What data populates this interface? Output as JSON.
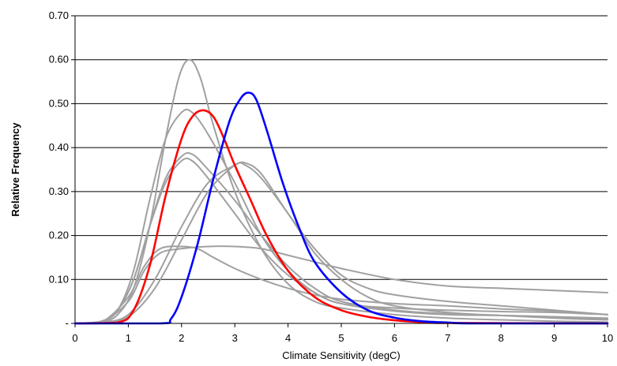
{
  "chart_data": {
    "type": "line",
    "title": "",
    "xlabel": "Climate Sensitivity (degC)",
    "ylabel": "Relative Frequency",
    "xlim": [
      0,
      10
    ],
    "ylim": [
      0,
      0.7
    ],
    "x_ticks": [
      "0",
      "1",
      "2",
      "3",
      "4",
      "5",
      "6",
      "7",
      "8",
      "9",
      "10"
    ],
    "y_ticks": [
      "-",
      "0.10",
      "0.20",
      "0.30",
      "0.40",
      "0.50",
      "0.60",
      "0.70"
    ],
    "grid": "horizontal",
    "legend": "none",
    "series": [
      {
        "color": "#a0a0a0",
        "points": [
          [
            0,
            0
          ],
          [
            0.5,
            0.003
          ],
          [
            0.8,
            0.02
          ],
          [
            1.1,
            0.08
          ],
          [
            1.4,
            0.22
          ],
          [
            1.7,
            0.42
          ],
          [
            1.95,
            0.56
          ],
          [
            2.15,
            0.6
          ],
          [
            2.35,
            0.56
          ],
          [
            2.6,
            0.45
          ],
          [
            3.0,
            0.3
          ],
          [
            3.5,
            0.17
          ],
          [
            4.0,
            0.09
          ],
          [
            4.5,
            0.05
          ],
          [
            5.0,
            0.035
          ],
          [
            6.0,
            0.02
          ],
          [
            7.0,
            0.012
          ],
          [
            8.0,
            0.008
          ],
          [
            9.0,
            0.005
          ],
          [
            10.0,
            0.003
          ]
        ]
      },
      {
        "color": "#a0a0a0",
        "points": [
          [
            0,
            0
          ],
          [
            0.5,
            0.005
          ],
          [
            0.8,
            0.03
          ],
          [
            1.1,
            0.12
          ],
          [
            1.4,
            0.28
          ],
          [
            1.7,
            0.42
          ],
          [
            2.0,
            0.48
          ],
          [
            2.2,
            0.48
          ],
          [
            2.5,
            0.43
          ],
          [
            3.0,
            0.32
          ],
          [
            3.5,
            0.2
          ],
          [
            4.0,
            0.12
          ],
          [
            4.5,
            0.07
          ],
          [
            5.0,
            0.045
          ],
          [
            6.0,
            0.028
          ],
          [
            7.0,
            0.02
          ],
          [
            8.0,
            0.018
          ],
          [
            9.0,
            0.015
          ],
          [
            10.0,
            0.01
          ]
        ]
      },
      {
        "color": "#a0a0a0",
        "points": [
          [
            0,
            0
          ],
          [
            0.5,
            0.005
          ],
          [
            0.8,
            0.03
          ],
          [
            1.1,
            0.1
          ],
          [
            1.4,
            0.22
          ],
          [
            1.7,
            0.33
          ],
          [
            2.0,
            0.38
          ],
          [
            2.2,
            0.385
          ],
          [
            2.5,
            0.35
          ],
          [
            3.0,
            0.28
          ],
          [
            3.5,
            0.2
          ],
          [
            4.0,
            0.13
          ],
          [
            4.5,
            0.08
          ],
          [
            5.0,
            0.05
          ],
          [
            6.0,
            0.03
          ],
          [
            7.0,
            0.022
          ],
          [
            8.0,
            0.018
          ],
          [
            9.0,
            0.015
          ],
          [
            10.0,
            0.012
          ]
        ]
      },
      {
        "color": "#a0a0a0",
        "points": [
          [
            0,
            0
          ],
          [
            0.5,
            0.005
          ],
          [
            0.8,
            0.03
          ],
          [
            1.1,
            0.1
          ],
          [
            1.4,
            0.22
          ],
          [
            1.7,
            0.32
          ],
          [
            2.0,
            0.37
          ],
          [
            2.2,
            0.37
          ],
          [
            2.5,
            0.33
          ],
          [
            3.0,
            0.25
          ],
          [
            3.5,
            0.17
          ],
          [
            4.0,
            0.11
          ],
          [
            4.5,
            0.07
          ],
          [
            5.0,
            0.045
          ],
          [
            6.0,
            0.035
          ],
          [
            7.0,
            0.03
          ],
          [
            8.0,
            0.027
          ],
          [
            9.0,
            0.025
          ],
          [
            10.0,
            0.02
          ]
        ]
      },
      {
        "color": "#a0a0a0",
        "points": [
          [
            0,
            0
          ],
          [
            0.5,
            0.002
          ],
          [
            1.0,
            0.02
          ],
          [
            1.5,
            0.1
          ],
          [
            2.0,
            0.22
          ],
          [
            2.5,
            0.32
          ],
          [
            3.0,
            0.36
          ],
          [
            3.2,
            0.365
          ],
          [
            3.5,
            0.34
          ],
          [
            4.0,
            0.25
          ],
          [
            4.5,
            0.17
          ],
          [
            5.0,
            0.11
          ],
          [
            5.5,
            0.08
          ],
          [
            6.0,
            0.065
          ],
          [
            7.0,
            0.05
          ],
          [
            8.0,
            0.04
          ],
          [
            9.0,
            0.03
          ],
          [
            10.0,
            0.02
          ]
        ]
      },
      {
        "color": "#a0a0a0",
        "points": [
          [
            0,
            0
          ],
          [
            0.5,
            0.002
          ],
          [
            1.0,
            0.015
          ],
          [
            1.5,
            0.08
          ],
          [
            2.0,
            0.19
          ],
          [
            2.5,
            0.3
          ],
          [
            3.0,
            0.36
          ],
          [
            3.2,
            0.36
          ],
          [
            3.5,
            0.33
          ],
          [
            4.0,
            0.25
          ],
          [
            4.5,
            0.16
          ],
          [
            5.0,
            0.1
          ],
          [
            5.5,
            0.06
          ],
          [
            6.0,
            0.04
          ],
          [
            7.0,
            0.025
          ],
          [
            8.0,
            0.018
          ],
          [
            9.0,
            0.012
          ],
          [
            10.0,
            0.008
          ]
        ]
      },
      {
        "color": "#a0a0a0",
        "points": [
          [
            0,
            0
          ],
          [
            0.5,
            0.003
          ],
          [
            1.0,
            0.05
          ],
          [
            1.3,
            0.12
          ],
          [
            1.6,
            0.16
          ],
          [
            2.0,
            0.17
          ],
          [
            2.5,
            0.175
          ],
          [
            3.0,
            0.175
          ],
          [
            3.5,
            0.17
          ],
          [
            4.0,
            0.155
          ],
          [
            4.5,
            0.14
          ],
          [
            5.0,
            0.125
          ],
          [
            6.0,
            0.1
          ],
          [
            7.0,
            0.085
          ],
          [
            8.0,
            0.08
          ],
          [
            9.0,
            0.075
          ],
          [
            10.0,
            0.07
          ]
        ]
      },
      {
        "color": "#a0a0a0",
        "points": [
          [
            0,
            0
          ],
          [
            0.5,
            0.003
          ],
          [
            1.0,
            0.06
          ],
          [
            1.3,
            0.13
          ],
          [
            1.6,
            0.17
          ],
          [
            2.0,
            0.175
          ],
          [
            2.3,
            0.17
          ],
          [
            2.6,
            0.15
          ],
          [
            3.0,
            0.125
          ],
          [
            3.5,
            0.1
          ],
          [
            4.0,
            0.08
          ],
          [
            4.5,
            0.065
          ],
          [
            5.0,
            0.055
          ],
          [
            6.0,
            0.045
          ],
          [
            7.0,
            0.04
          ],
          [
            8.0,
            0.033
          ],
          [
            9.0,
            0.028
          ],
          [
            10.0,
            0.02
          ]
        ]
      },
      {
        "color": "#ff0000",
        "points": [
          [
            0,
            0
          ],
          [
            0.8,
            0.002
          ],
          [
            1.1,
            0.03
          ],
          [
            1.4,
            0.13
          ],
          [
            1.7,
            0.29
          ],
          [
            2.0,
            0.42
          ],
          [
            2.2,
            0.47
          ],
          [
            2.4,
            0.485
          ],
          [
            2.6,
            0.47
          ],
          [
            2.8,
            0.42
          ],
          [
            3.0,
            0.36
          ],
          [
            3.3,
            0.28
          ],
          [
            3.6,
            0.2
          ],
          [
            4.0,
            0.12
          ],
          [
            4.5,
            0.06
          ],
          [
            5.0,
            0.03
          ],
          [
            5.5,
            0.015
          ],
          [
            6.0,
            0.007
          ],
          [
            6.5,
            0.003
          ],
          [
            7.0,
            0.001
          ],
          [
            10.0,
            0
          ]
        ]
      },
      {
        "color": "#0000ff",
        "points": [
          [
            0,
            0
          ],
          [
            1.6,
            0
          ],
          [
            1.8,
            0.01
          ],
          [
            2.0,
            0.06
          ],
          [
            2.3,
            0.18
          ],
          [
            2.6,
            0.33
          ],
          [
            2.9,
            0.46
          ],
          [
            3.1,
            0.51
          ],
          [
            3.25,
            0.525
          ],
          [
            3.4,
            0.51
          ],
          [
            3.6,
            0.44
          ],
          [
            3.9,
            0.32
          ],
          [
            4.2,
            0.22
          ],
          [
            4.5,
            0.14
          ],
          [
            5.0,
            0.07
          ],
          [
            5.5,
            0.03
          ],
          [
            6.0,
            0.013
          ],
          [
            6.5,
            0.005
          ],
          [
            7.0,
            0.002
          ],
          [
            7.5,
            0
          ],
          [
            10.0,
            0
          ]
        ]
      }
    ]
  }
}
